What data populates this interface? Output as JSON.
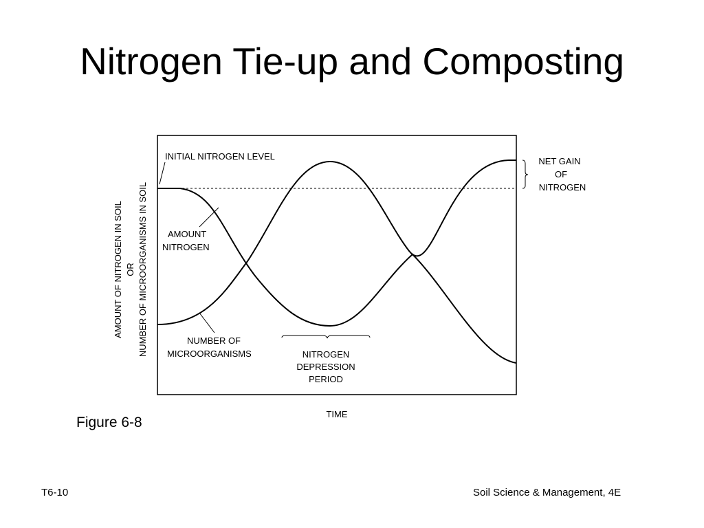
{
  "slide": {
    "title": "Nitrogen Tie-up and Composting",
    "caption": "Figure 6-8",
    "footer_left": "T6-10",
    "footer_right": "Soil Science & Management, 4E"
  },
  "diagram": {
    "labels": {
      "initial_level": "INITIAL NITROGEN LEVEL",
      "amount_nitrogen": [
        "AMOUNT",
        "NITROGEN"
      ],
      "microorganisms": [
        "NUMBER OF",
        "MICROORGANISMS"
      ],
      "depression_period": [
        "NITROGEN",
        "DEPRESSION",
        "PERIOD"
      ],
      "net_gain": [
        "NET GAIN",
        "OF",
        "NITROGEN"
      ],
      "y_axis": [
        "AMOUNT OF NITROGEN IN SOIL",
        "OR",
        "NUMBER OF MICROORGANISMS IN SOIL"
      ],
      "x_axis": "TIME"
    }
  }
}
